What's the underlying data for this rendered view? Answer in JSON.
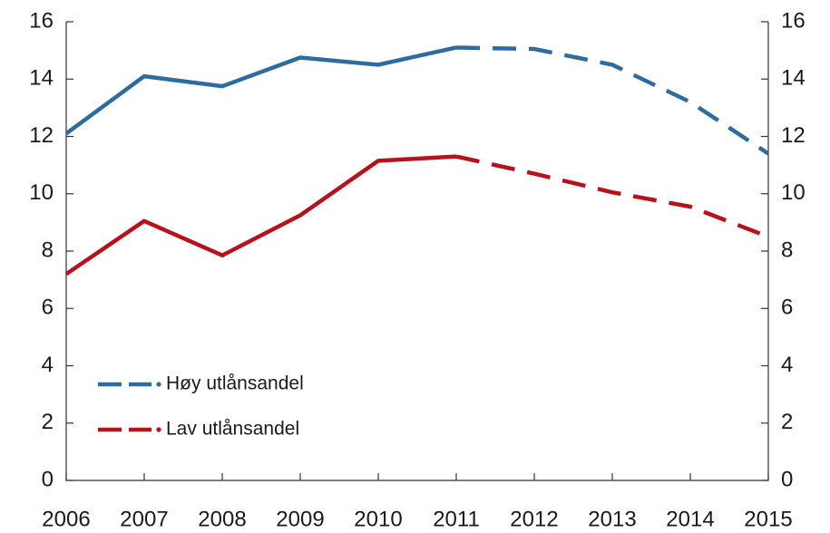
{
  "chart_data": {
    "type": "line",
    "x": [
      2006,
      2007,
      2008,
      2009,
      2010,
      2011,
      2012,
      2013,
      2014,
      2015
    ],
    "series": [
      {
        "name": "Høy utlånsandel",
        "color": "#2e6b9e",
        "values": [
          12.1,
          14.1,
          13.75,
          14.75,
          14.5,
          15.1,
          15.05,
          14.5,
          13.2,
          11.4
        ]
      },
      {
        "name": "Lav utlånsandel",
        "color": "#b5121b",
        "values": [
          7.2,
          9.05,
          7.85,
          9.25,
          11.15,
          11.3,
          10.7,
          10.05,
          9.55,
          8.5
        ]
      }
    ],
    "dashed_after": 2011,
    "xlim": [
      2006,
      2015
    ],
    "xticks": [
      2006,
      2007,
      2008,
      2009,
      2010,
      2011,
      2012,
      2013,
      2014,
      2015
    ],
    "ylim": [
      0,
      16
    ],
    "yticks": [
      0,
      2,
      4,
      6,
      8,
      10,
      12,
      14,
      16
    ],
    "y2lim": [
      0,
      16
    ],
    "y2ticks": [
      0,
      2,
      4,
      6,
      8,
      10,
      12,
      14,
      16
    ],
    "grid": false,
    "legend": "lower left"
  }
}
